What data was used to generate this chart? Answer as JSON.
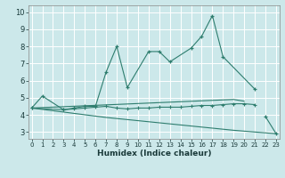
{
  "xlabel": "Humidex (Indice chaleur)",
  "x_values": [
    0,
    1,
    2,
    3,
    4,
    5,
    6,
    7,
    8,
    9,
    10,
    11,
    12,
    13,
    14,
    15,
    16,
    17,
    18,
    19,
    20,
    21,
    22,
    23
  ],
  "line_main": [
    4.4,
    5.1,
    null,
    4.3,
    4.4,
    4.5,
    4.5,
    6.5,
    8.0,
    5.6,
    null,
    7.7,
    7.7,
    7.1,
    null,
    7.9,
    8.6,
    9.8,
    7.4,
    null,
    null,
    5.5,
    null,
    null
  ],
  "line_flat": [
    4.4,
    null,
    null,
    4.3,
    4.35,
    4.4,
    4.45,
    4.5,
    4.4,
    4.35,
    4.4,
    4.4,
    4.45,
    4.45,
    4.45,
    4.5,
    4.55,
    4.55,
    4.6,
    4.65,
    4.65,
    4.6,
    null,
    null
  ],
  "line_upper": [
    4.4,
    null,
    null,
    null,
    null,
    null,
    null,
    null,
    null,
    null,
    null,
    null,
    null,
    null,
    null,
    null,
    null,
    null,
    null,
    4.9,
    4.8,
    null,
    null,
    null
  ],
  "line_decline": [
    4.4,
    null,
    null,
    null,
    null,
    null,
    null,
    3.85,
    null,
    null,
    null,
    null,
    null,
    null,
    null,
    null,
    null,
    null,
    null,
    3.1,
    null,
    null,
    null,
    2.9
  ],
  "line_connect": [
    null,
    null,
    null,
    null,
    null,
    null,
    null,
    null,
    null,
    null,
    null,
    null,
    null,
    null,
    null,
    null,
    null,
    null,
    null,
    null,
    null,
    null,
    3.9,
    2.9
  ],
  "color": "#2e7d6e",
  "bg_color": "#cce8ea",
  "grid_color": "#b0d8da",
  "ylim_min": 3,
  "ylim_max": 10,
  "xlim_min": 0,
  "xlim_max": 23,
  "yticks": [
    3,
    4,
    5,
    6,
    7,
    8,
    9,
    10
  ],
  "xticks": [
    0,
    1,
    2,
    3,
    4,
    5,
    6,
    7,
    8,
    9,
    10,
    11,
    12,
    13,
    14,
    15,
    16,
    17,
    18,
    19,
    20,
    21,
    22,
    23
  ]
}
